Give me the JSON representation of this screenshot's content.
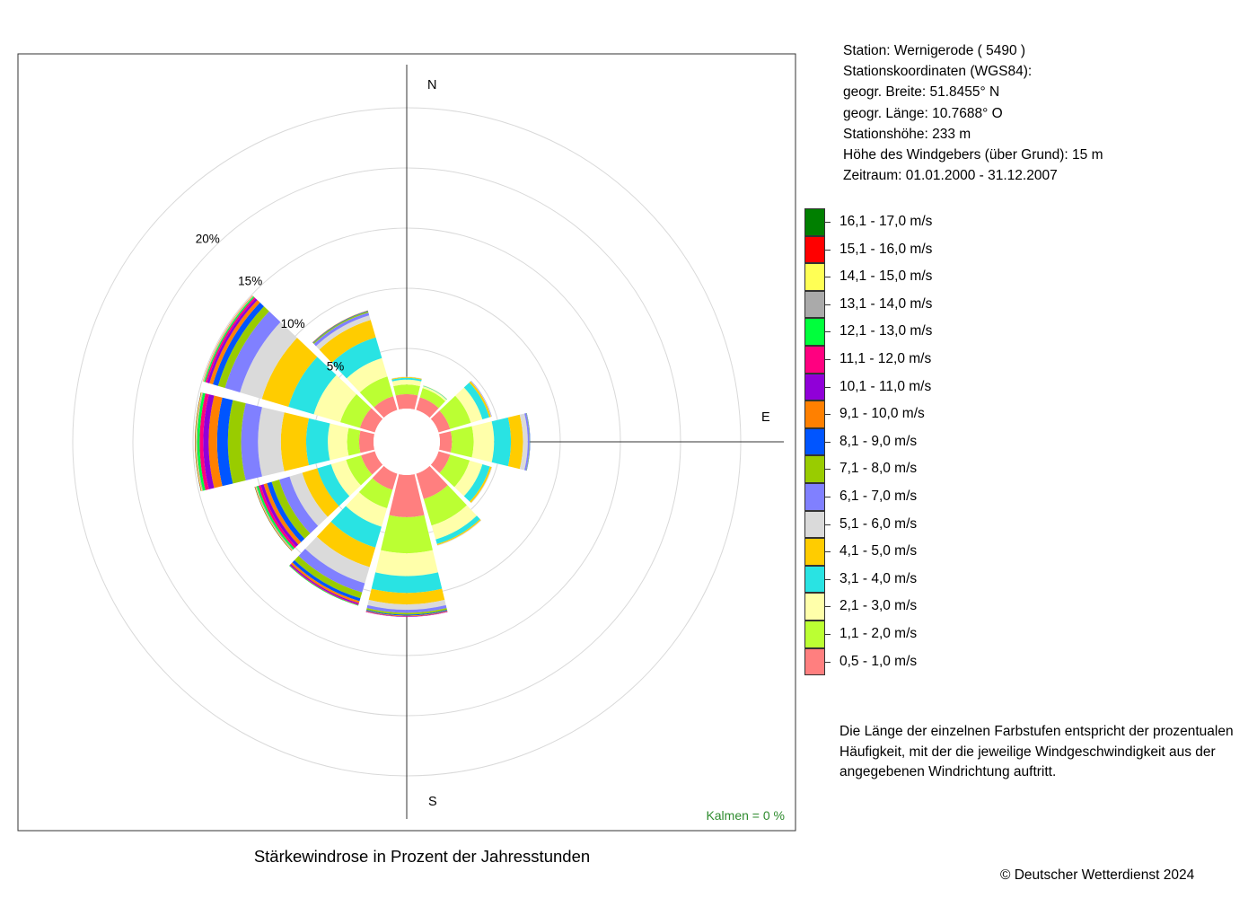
{
  "station": {
    "name_line": "Station:  Wernigerode  ( 5490 )",
    "coords_heading": "Stationskoordinaten (WGS84):",
    "lat_line": "geogr. Breite: 51.8455° N",
    "lon_line": "geogr. Länge: 10.7688° O",
    "elevation_line": "Stationshöhe: 233 m",
    "sensor_height_line": "Höhe des Windgebers (über Grund): 15 m",
    "period_line": "Zeitraum: 01.01.2000 - 31.12.2007"
  },
  "legend": {
    "items": [
      {
        "label": "16,1 - 17,0 m/s",
        "color": "#007f00"
      },
      {
        "label": "15,1 - 16,0 m/s",
        "color": "#ff0000"
      },
      {
        "label": "14,1 - 15,0 m/s",
        "color": "#ffff55"
      },
      {
        "label": "13,1 - 14,0 m/s",
        "color": "#aaaaaa"
      },
      {
        "label": "12,1 - 13,0 m/s",
        "color": "#00ff3c"
      },
      {
        "label": "11,1 - 12,0 m/s",
        "color": "#ff0080"
      },
      {
        "label": "10,1 - 11,0 m/s",
        "color": "#9000d8"
      },
      {
        "label": "9,1 - 10,0 m/s",
        "color": "#ff8000"
      },
      {
        "label": "8,1 - 9,0 m/s",
        "color": "#0055ff"
      },
      {
        "label": "7,1 - 8,0 m/s",
        "color": "#99cc00"
      },
      {
        "label": "6,1 - 7,0 m/s",
        "color": "#8080ff"
      },
      {
        "label": "5,1 - 6,0 m/s",
        "color": "#dadada"
      },
      {
        "label": "4,1 - 5,0 m/s",
        "color": "#ffcc00"
      },
      {
        "label": "3,1 - 4,0 m/s",
        "color": "#29e3e3"
      },
      {
        "label": "2,1 - 3,0 m/s",
        "color": "#ffffaa"
      },
      {
        "label": "1,1 - 2,0 m/s",
        "color": "#bbff33"
      },
      {
        "label": "0,5 - 1,0 m/s",
        "color": "#ff7f7f"
      }
    ]
  },
  "note": "Die Länge der einzelnen Farbstufen entspricht der prozentualen Häufigkeit, mit der die jeweilige Windgeschwindigkeit aus der angegebenen Windrichtung auftritt.",
  "title": "Stärkewindrose in Prozent der Jahresstunden",
  "copyright": "© Deutscher Wetterdienst  2024",
  "calm": "Kalmen  =  0 %",
  "chart_data": {
    "type": "wind-rose",
    "title": "Stärkewindrose in Prozent der Jahresstunden",
    "directions": [
      0,
      30,
      60,
      90,
      120,
      150,
      180,
      210,
      240,
      270,
      300,
      330
    ],
    "compass_labels": {
      "N": "N",
      "E": "E",
      "S": "S"
    },
    "ring_labels": [
      "5%",
      "10%",
      "15%",
      "20%"
    ],
    "ring_values": [
      5,
      10,
      15,
      20
    ],
    "range_max": 20,
    "speed_classes": [
      "0,5 - 1,0 m/s",
      "1,1 - 2,0 m/s",
      "2,1 - 3,0 m/s",
      "3,1 - 4,0 m/s",
      "4,1 - 5,0 m/s",
      "5,1 - 6,0 m/s",
      "6,1 - 7,0 m/s",
      "7,1 - 8,0 m/s",
      "8,1 - 9,0 m/s",
      "9,1 - 10,0 m/s",
      "10,1 - 11,0 m/s",
      "11,1 - 12,0 m/s",
      "12,1 - 13,0 m/s",
      "13,1 - 14,0 m/s",
      "14,1 - 15,0 m/s",
      "15,1 - 16,0 m/s",
      "16,1 - 17,0 m/s"
    ],
    "colors": [
      "#ff7f7f",
      "#bbff33",
      "#ffffaa",
      "#29e3e3",
      "#ffcc00",
      "#dadada",
      "#8080ff",
      "#99cc00",
      "#0055ff",
      "#ff8000",
      "#9000d8",
      "#ff0080",
      "#00ff3c",
      "#aaaaaa",
      "#ffff55",
      "#ff0000",
      "#007f00"
    ],
    "series": [
      {
        "direction": 0,
        "values": [
          1.2,
          0.8,
          0.4,
          0.15,
          0.07,
          0.03
        ]
      },
      {
        "direction": 30,
        "values": [
          1.1,
          0.8,
          0.15,
          0.05,
          0.02
        ]
      },
      {
        "direction": 60,
        "values": [
          1.0,
          1.8,
          1.0,
          0.6,
          0.15,
          0.04,
          0.03
        ]
      },
      {
        "direction": 90,
        "values": [
          1.0,
          1.8,
          1.7,
          1.4,
          1.0,
          0.4,
          0.15,
          0.03,
          0.02
        ]
      },
      {
        "direction": 120,
        "values": [
          1.0,
          1.7,
          1.1,
          0.65,
          0.15,
          0.05
        ]
      },
      {
        "direction": 150,
        "values": [
          2.2,
          2.3,
          1.2,
          0.4,
          0.1,
          0.05
        ]
      },
      {
        "direction": 180,
        "values": [
          3.5,
          3.0,
          1.9,
          1.4,
          0.95,
          0.45,
          0.25,
          0.15,
          0.08,
          0.05,
          0.04,
          0.02
        ]
      },
      {
        "direction": 210,
        "values": [
          1.4,
          1.6,
          1.6,
          1.8,
          1.7,
          1.4,
          0.8,
          0.5,
          0.25,
          0.18,
          0.1,
          0.06,
          0.05
        ]
      },
      {
        "direction": 240,
        "values": [
          1.2,
          1.3,
          1.3,
          1.2,
          1.3,
          1.1,
          0.9,
          0.65,
          0.4,
          0.3,
          0.25,
          0.2,
          0.15,
          0.08,
          0.05,
          0.03,
          0.02
        ]
      },
      {
        "direction": 270,
        "values": [
          1.2,
          1.0,
          1.6,
          1.8,
          2.1,
          1.9,
          1.4,
          1.1,
          0.9,
          0.7,
          0.45,
          0.3,
          0.2,
          0.08,
          0.06,
          0.03,
          0.02
        ]
      },
      {
        "direction": 300,
        "values": [
          1.3,
          1.7,
          2.3,
          2.2,
          2.3,
          1.9,
          1.3,
          0.6,
          0.45,
          0.3,
          0.2,
          0.15,
          0.1,
          0.06,
          0.04,
          0.02
        ]
      },
      {
        "direction": 330,
        "values": [
          1.2,
          1.7,
          1.6,
          1.8,
          1.5,
          0.4,
          0.25,
          0.1,
          0.05,
          0.03
        ]
      }
    ]
  }
}
